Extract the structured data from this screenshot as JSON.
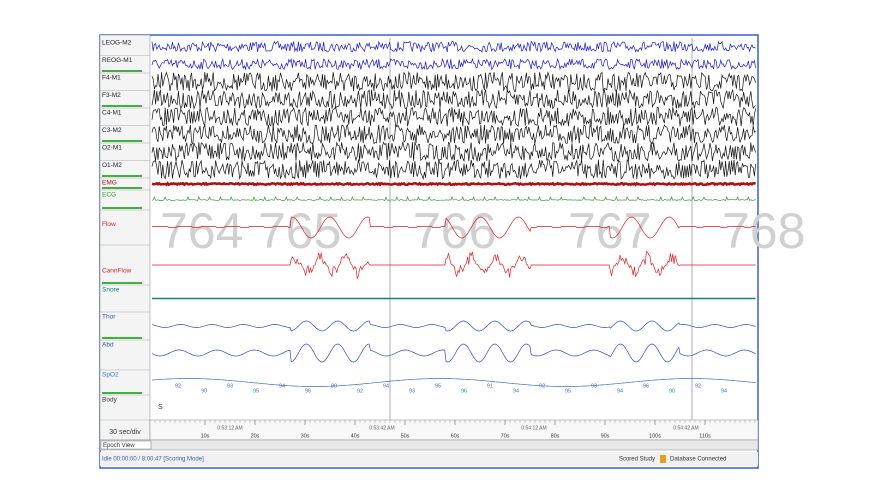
{
  "channels": [
    "LEOG-M2",
    "REOG-M1",
    "F4-M1",
    "F3-M2",
    "C4-M1",
    "C3-M2",
    "O2-M1",
    "O1-M2",
    "EMG",
    "ECG",
    "Flow",
    "CannFlow",
    "Snore",
    "Thor",
    "Abd",
    "SpO2",
    "Body"
  ],
  "epochs": [
    "764",
    "765",
    "766",
    "767",
    "768"
  ],
  "spo2_labels": [
    "92",
    "90",
    "93",
    "95",
    "94",
    "96",
    "90",
    "92",
    "94",
    "93",
    "95",
    "96",
    "91",
    "94",
    "92",
    "95",
    "93",
    "94",
    "96",
    "90",
    "92",
    "94"
  ],
  "body_position": "S",
  "time_ticks": [
    "10s",
    "20s",
    "30s",
    "40s",
    "50s",
    "60s",
    "70s",
    "80s",
    "90s",
    "100s",
    "110s"
  ],
  "clock_labels": [
    "0:53:12 AM",
    "0:53:42 AM",
    "0:54:12 AM",
    "0:54:42 AM"
  ],
  "scale": "30 sec/div",
  "view_mode": "Epoch View",
  "status_left": "Idle 00:00:00 / 8:00:47 [Scoring Mode]",
  "status_right": [
    "Scored Study",
    "Database Connected"
  ]
}
